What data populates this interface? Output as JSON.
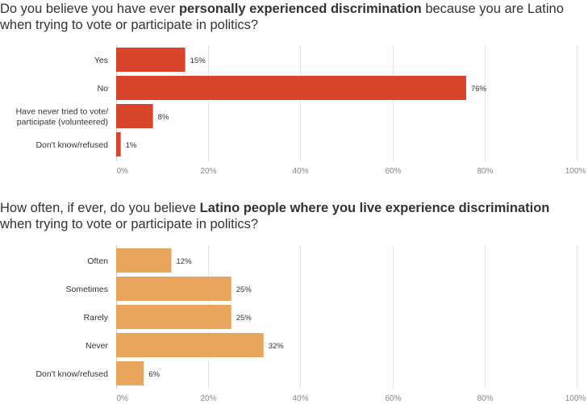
{
  "charts": [
    {
      "title_prefix": "Do you believe you have ever ",
      "title_bold": "personally experienced discrimination",
      "title_suffix": " because you are Latino when trying to vote or participate in politics?",
      "bar_color": "#d9452b"
    },
    {
      "title_prefix": "How often, if ever, do you believe ",
      "title_bold": "Latino people where you live experience discrimination",
      "title_suffix": " when trying to vote or participate in politics?",
      "bar_color": "#e9a55e"
    }
  ],
  "chart_data": [
    {
      "type": "bar",
      "orientation": "horizontal",
      "title": "Do you believe you have ever personally experienced discrimination because you are Latino when trying to vote or participate in politics?",
      "categories": [
        [
          "Yes"
        ],
        [
          "No"
        ],
        [
          "Have never tried to vote/",
          "participate (volunteered)"
        ],
        [
          "Don't know/refused"
        ]
      ],
      "values": [
        15,
        76,
        8,
        1
      ],
      "value_labels": [
        "15%",
        "76%",
        "8%",
        "1%"
      ],
      "xlim": [
        0,
        100
      ],
      "ticks": [
        "0%",
        "20%",
        "40%",
        "60%",
        "80%",
        "100%"
      ],
      "grid": true
    },
    {
      "type": "bar",
      "orientation": "horizontal",
      "title": "How often, if ever, do you believe Latino people where you live experience discrimination when trying to vote or participate in politics?",
      "categories": [
        [
          "Often"
        ],
        [
          "Sometimes"
        ],
        [
          "Rarely"
        ],
        [
          "Never"
        ],
        [
          "Don't know/refused"
        ]
      ],
      "values": [
        12,
        25,
        25,
        32,
        6
      ],
      "value_labels": [
        "12%",
        "25%",
        "25%",
        "32%",
        "6%"
      ],
      "xlim": [
        0,
        100
      ],
      "ticks": [
        "0%",
        "20%",
        "40%",
        "60%",
        "80%",
        "100%"
      ],
      "grid": true
    }
  ]
}
